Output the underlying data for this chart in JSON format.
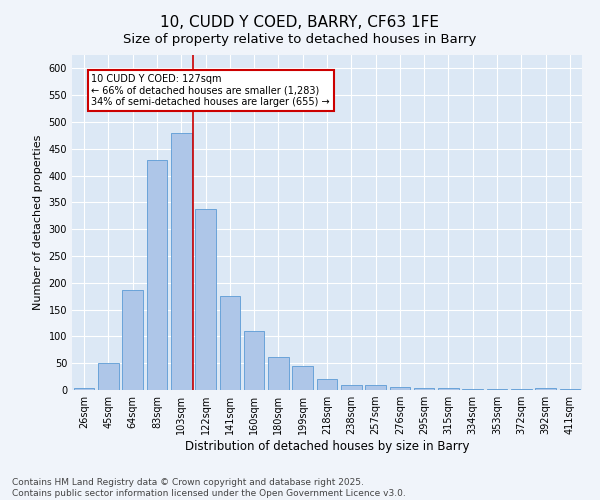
{
  "title": "10, CUDD Y COED, BARRY, CF63 1FE",
  "subtitle": "Size of property relative to detached houses in Barry",
  "xlabel": "Distribution of detached houses by size in Barry",
  "ylabel": "Number of detached properties",
  "categories": [
    "26sqm",
    "45sqm",
    "64sqm",
    "83sqm",
    "103sqm",
    "122sqm",
    "141sqm",
    "160sqm",
    "180sqm",
    "199sqm",
    "218sqm",
    "238sqm",
    "257sqm",
    "276sqm",
    "295sqm",
    "315sqm",
    "334sqm",
    "353sqm",
    "372sqm",
    "392sqm",
    "411sqm"
  ],
  "values": [
    3,
    50,
    187,
    430,
    480,
    337,
    175,
    110,
    62,
    45,
    20,
    10,
    10,
    5,
    4,
    3,
    2,
    1,
    1,
    3,
    1
  ],
  "bar_color": "#aec6e8",
  "bar_edge_color": "#5b9bd5",
  "background_color": "#dce8f5",
  "fig_background_color": "#f0f4fa",
  "vline_index": 5,
  "vline_color": "#cc0000",
  "annotation_text": "10 CUDD Y COED: 127sqm\n← 66% of detached houses are smaller (1,283)\n34% of semi-detached houses are larger (655) →",
  "annotation_box_color": "#ffffff",
  "annotation_box_edge": "#cc0000",
  "ylim": [
    0,
    625
  ],
  "yticks": [
    0,
    50,
    100,
    150,
    200,
    250,
    300,
    350,
    400,
    450,
    500,
    550,
    600
  ],
  "footer": "Contains HM Land Registry data © Crown copyright and database right 2025.\nContains public sector information licensed under the Open Government Licence v3.0.",
  "title_fontsize": 11,
  "subtitle_fontsize": 9.5,
  "xlabel_fontsize": 8.5,
  "ylabel_fontsize": 8,
  "tick_fontsize": 7,
  "footer_fontsize": 6.5
}
